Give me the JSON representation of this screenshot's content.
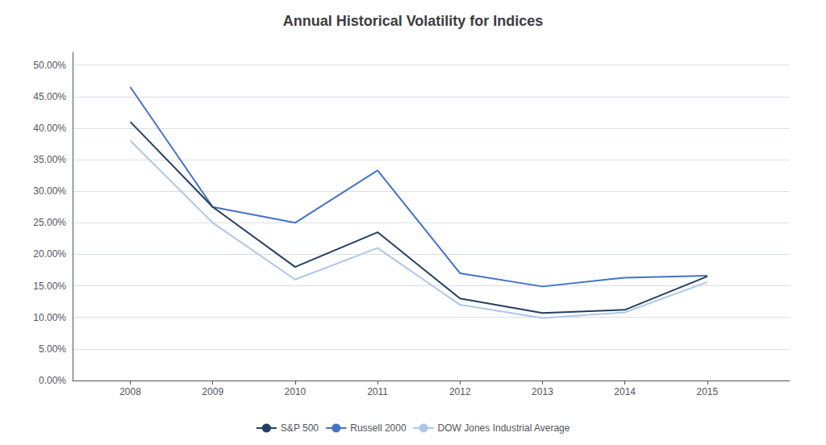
{
  "chart_data": {
    "type": "line",
    "title": "Annual Historical Volatility for Indices",
    "x": [
      2008,
      2009,
      2010,
      2011,
      2012,
      2013,
      2014,
      2015
    ],
    "series": [
      {
        "name": "S&P 500",
        "color": "#243F60",
        "values": [
          0.41,
          0.275,
          0.18,
          0.235,
          0.13,
          0.107,
          0.112,
          0.165
        ]
      },
      {
        "name": "Russell 2000",
        "color": "#4472C4",
        "values": [
          0.465,
          0.275,
          0.25,
          0.333,
          0.17,
          0.149,
          0.163,
          0.166
        ]
      },
      {
        "name": "DOW Jones Industrial Average",
        "color": "#AFC7E8",
        "values": [
          0.38,
          0.25,
          0.16,
          0.21,
          0.12,
          0.099,
          0.108,
          0.156
        ]
      }
    ],
    "xlim": [
      2007.3,
      2016.0
    ],
    "xticks": [
      2008,
      2009,
      2010,
      2011,
      2012,
      2013,
      2014,
      2015
    ],
    "ylim": [
      0.0,
      0.52
    ],
    "yticks": [
      {
        "value": 0,
        "label": "0.00%"
      },
      {
        "value": 0.05,
        "label": "5.00%"
      },
      {
        "value": 0.1,
        "label": "10.00%"
      },
      {
        "value": 0.15,
        "label": "15.00%"
      },
      {
        "value": 0.2,
        "label": "20.00%"
      },
      {
        "value": 0.25,
        "label": "25.00%"
      },
      {
        "value": 0.3,
        "label": "30.00%"
      },
      {
        "value": 0.35,
        "label": "35.00%"
      },
      {
        "value": 0.4,
        "label": "40.00%"
      },
      {
        "value": 0.45,
        "label": "45.00%"
      },
      {
        "value": 0.5,
        "label": "50.00%"
      }
    ],
    "grid": true,
    "legend": "bottom"
  }
}
